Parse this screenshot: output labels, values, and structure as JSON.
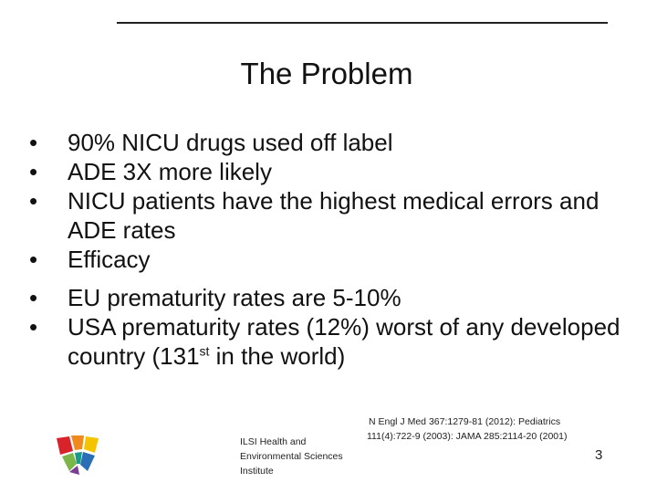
{
  "slide": {
    "title": "The Problem",
    "bullets": [
      {
        "text": "90% NICU drugs used off label"
      },
      {
        "text": "ADE 3X more likely"
      },
      {
        "text": "NICU patients have the highest medical errors and ADE rates"
      },
      {
        "text": "Efficacy"
      },
      {
        "text": "EU prematurity rates are 5-10%"
      },
      {
        "text_before": "USA prematurity rates (12%) worst of any developed country (131",
        "superscript": "st",
        "text_after": " in the world)"
      }
    ],
    "reference_line1": "N Engl J Med 367:1279-81 (2012):  Pediatrics",
    "reference_line2": "111(4):722-9 (2003):  JAMA 285:2114-20 (2001)",
    "institute_line1": "ILSI Health and",
    "institute_line2": "Environmental Sciences",
    "institute_line3": "Institute",
    "page_number": "3",
    "logo_icon": "ilsi-logo-icon",
    "colors": {
      "logo_red": "#d8232a",
      "logo_orange": "#f08a1c",
      "logo_yellow": "#f5c400",
      "logo_green": "#7ab648",
      "logo_teal": "#1a9a8a",
      "logo_purple": "#7a3d96",
      "logo_blue": "#2a6fb6"
    }
  }
}
